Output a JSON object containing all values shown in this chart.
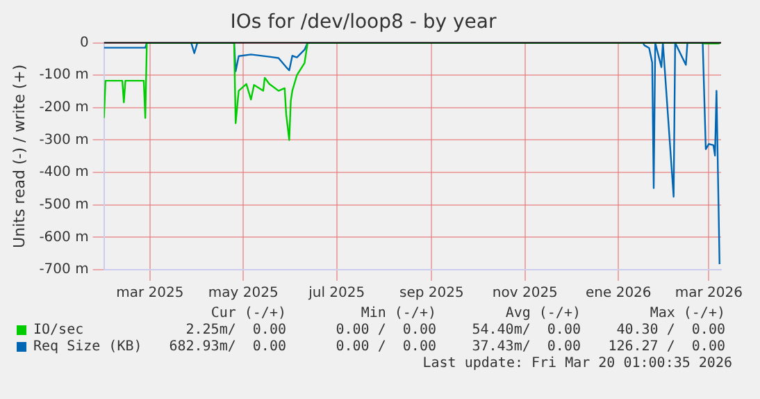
{
  "chart_data": {
    "type": "line",
    "title": "IOs for /dev/loop8 - by year",
    "ylabel": "Units read (-) / write (+)",
    "xlim": [
      "2025-01-30",
      "2026-03-09"
    ],
    "xticks": [
      {
        "value": "2025-03-01",
        "label": "mar 2025"
      },
      {
        "value": "2025-05-01",
        "label": "may 2025"
      },
      {
        "value": "2025-07-01",
        "label": "jul 2025"
      },
      {
        "value": "2025-09-01",
        "label": "sep 2025"
      },
      {
        "value": "2025-11-01",
        "label": "nov 2025"
      },
      {
        "value": "2026-01-01",
        "label": "ene 2026"
      },
      {
        "value": "2026-03-01",
        "label": "mar 2026"
      }
    ],
    "ylim": [
      -700,
      0
    ],
    "yticks": [
      {
        "value": -700,
        "label": "-700 m"
      },
      {
        "value": -600,
        "label": "-600 m"
      },
      {
        "value": -500,
        "label": "-500 m"
      },
      {
        "value": -400,
        "label": "-400 m"
      },
      {
        "value": -300,
        "label": "-300 m"
      },
      {
        "value": -200,
        "label": "-200 m"
      },
      {
        "value": -100,
        "label": "-100 m"
      },
      0
    ],
    "grid": true,
    "legend": "bottom",
    "marker": "none",
    "line_style": "solid",
    "ref_lines": [
      {
        "axis": "y",
        "value": 0,
        "color": "#000000"
      }
    ],
    "series": [
      {
        "name": "IO/sec",
        "color": "#00cc00",
        "x": [
          "2025-01-30",
          "2025-01-31",
          "2025-02-11",
          "2025-02-12",
          "2025-02-13",
          "2025-02-25",
          "2025-02-26",
          "2025-02-27",
          "2025-04-25",
          "2025-04-26",
          "2025-04-28",
          "2025-05-03",
          "2025-05-06",
          "2025-05-08",
          "2025-05-14",
          "2025-05-15",
          "2025-05-18",
          "2025-05-24",
          "2025-05-28",
          "2025-05-29",
          "2025-05-31",
          "2025-06-01",
          "2025-06-02",
          "2025-06-05",
          "2025-06-10",
          "2025-06-12",
          "2026-02-25",
          "2026-02-26",
          "2026-03-08"
        ],
        "values": [
          -232,
          -117,
          -117,
          -184,
          -117,
          -117,
          -232,
          0,
          0,
          -248,
          -148,
          -127,
          -175,
          -130,
          -148,
          -108,
          -127,
          -148,
          -140,
          -220,
          -300,
          -180,
          -148,
          -100,
          -62,
          0,
          0,
          -2,
          -2
        ]
      },
      {
        "name": "Req Size (KB)",
        "color": "#0066b3",
        "x": [
          "2025-01-30",
          "2025-02-26",
          "2025-02-27",
          "2025-03-28",
          "2025-03-30",
          "2025-04-01",
          "2025-04-25",
          "2025-04-26",
          "2025-04-28",
          "2025-05-06",
          "2025-05-18",
          "2025-05-24",
          "2025-05-29",
          "2025-05-31",
          "2025-06-02",
          "2025-06-05",
          "2025-06-10",
          "2025-06-12",
          "2026-01-17",
          "2026-01-18",
          "2026-01-21",
          "2026-01-23",
          "2026-01-24",
          "2026-01-25",
          "2026-01-29",
          "2026-01-30",
          "2026-02-06",
          "2026-02-07",
          "2026-02-14",
          "2026-02-15",
          "2026-02-25",
          "2026-02-27",
          "2026-03-01",
          "2026-03-04",
          "2026-03-05",
          "2026-03-06",
          "2026-03-08"
        ],
        "values": [
          -15,
          -15,
          0,
          0,
          -32,
          0,
          0,
          -88,
          -41,
          -36,
          -43,
          -47,
          -75,
          -85,
          -40,
          -45,
          -21,
          0,
          0,
          -8,
          -16,
          -61,
          -448,
          0,
          -75,
          0,
          -475,
          0,
          -68,
          0,
          0,
          -328,
          -312,
          -316,
          -348,
          -148,
          -683
        ]
      }
    ],
    "annotations": [
      "Cur (-/+)",
      "Min (-/+)",
      "Avg (-/+)",
      "Max (-/+)",
      "2.25m/  0.00",
      "0.00 /  0.00",
      "54.40m/  0.00",
      "40.30 /  0.00",
      "682.93m/  0.00",
      "0.00 /  0.00",
      "37.43m/  0.00",
      "126.27 /  0.00",
      "Last update: Fri Mar 20 01:00:35 2026"
    ]
  }
}
